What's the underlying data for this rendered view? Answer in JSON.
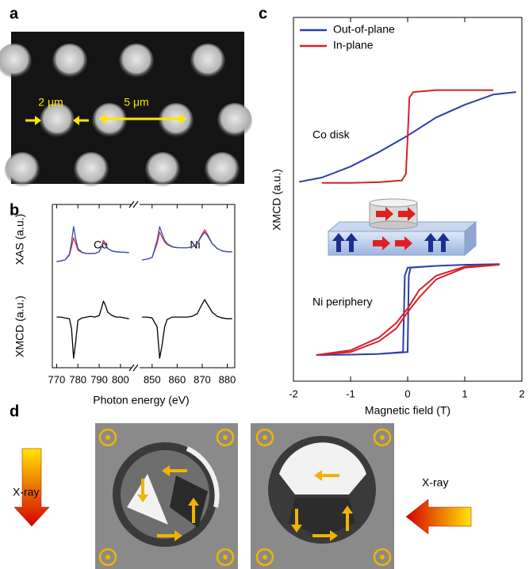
{
  "panel_labels": [
    "a",
    "b",
    "c",
    "d"
  ],
  "panel_a": {
    "annotations": [
      "2 μm",
      "5 μm"
    ]
  },
  "panel_d": {
    "labels": [
      "X-ray",
      "X-ray"
    ]
  },
  "chart_data": [
    {
      "type": "broken-axis-line",
      "xlabel": "Photon energy (eV)",
      "ylabels": [
        "XAS (a.u.)",
        "XMCD (a.u.)"
      ],
      "ylim": [
        0,
        10
      ],
      "segments": [
        {
          "xlim": [
            768,
            806
          ],
          "xticks": [
            770,
            780,
            790,
            800
          ],
          "annotation": "Co",
          "x": [
            770,
            772,
            774,
            776,
            777,
            778,
            779,
            780,
            782,
            784,
            786,
            788,
            790,
            791,
            792,
            793,
            794,
            796,
            798,
            800,
            802,
            804
          ],
          "series": [
            {
              "color": "#e03030",
              "values": [
                6.5,
                6.55,
                6.6,
                6.9,
                7.4,
                7.96,
                7.6,
                7.2,
                7.05,
                7.0,
                7.0,
                7.0,
                7.1,
                7.4,
                7.8,
                7.6,
                7.3,
                7.15,
                7.1,
                7.08,
                7.07,
                7.05
              ]
            },
            {
              "color": "#3050c0",
              "values": [
                6.5,
                6.55,
                6.6,
                6.95,
                7.7,
                8.64,
                7.9,
                7.3,
                7.07,
                7.0,
                7.0,
                7.0,
                7.1,
                7.35,
                7.65,
                7.5,
                7.3,
                7.15,
                7.1,
                7.08,
                7.07,
                7.05
              ]
            },
            {
              "color": "#000000",
              "values": [
                3.1,
                3.1,
                3.05,
                3.0,
                2.4,
                0.58,
                1.6,
                2.9,
                3.05,
                3.1,
                3.15,
                3.1,
                3.2,
                3.6,
                4.08,
                3.8,
                3.4,
                3.2,
                3.1,
                3.1,
                3.05,
                3.0
              ]
            }
          ]
        },
        {
          "xlim": [
            845,
            883
          ],
          "xticks": [
            850,
            860,
            870,
            880
          ],
          "annotation": "Ni",
          "x": [
            846,
            848,
            850,
            852,
            853,
            854,
            855,
            856,
            858,
            860,
            862,
            864,
            866,
            868,
            870,
            871,
            872,
            874,
            876,
            878,
            880,
            882
          ],
          "series": [
            {
              "color": "#e03030",
              "values": [
                6.6,
                6.65,
                6.75,
                7.6,
                8.3,
                8.0,
                7.7,
                7.55,
                7.4,
                7.35,
                7.35,
                7.35,
                7.4,
                7.6,
                8.2,
                8.45,
                8.2,
                7.6,
                7.3,
                7.15,
                7.1,
                7.09
              ]
            },
            {
              "color": "#3050c0",
              "values": [
                6.6,
                6.65,
                6.75,
                7.8,
                8.64,
                8.2,
                7.8,
                7.6,
                7.42,
                7.36,
                7.35,
                7.35,
                7.4,
                7.6,
                8.1,
                8.3,
                8.1,
                7.6,
                7.3,
                7.15,
                7.1,
                7.09
              ]
            },
            {
              "color": "#000000",
              "values": [
                3.1,
                3.1,
                3.05,
                2.5,
                0.58,
                1.4,
                2.5,
                2.95,
                3.1,
                3.1,
                3.1,
                3.1,
                3.15,
                3.3,
                3.9,
                4.17,
                3.9,
                3.4,
                3.15,
                3.05,
                3.0,
                3.0
              ]
            }
          ]
        }
      ]
    },
    {
      "type": "line",
      "xlabel": "Magnetic field (T)",
      "ylabel": "XMCD (a.u.)",
      "xlim": [
        -2,
        2
      ],
      "xticks": [
        -2,
        -1,
        0,
        1,
        2
      ],
      "ylim": [
        0,
        10
      ],
      "annotations": [
        "Co disk",
        "Ni periphery"
      ],
      "series": [
        {
          "name": "Out-of-plane",
          "color": "#2a3fa8",
          "x": [
            -1.9,
            -1.5,
            -1,
            -0.5,
            0,
            0.5,
            1,
            1.5,
            1.9
          ],
          "values": [
            5.48,
            5.6,
            5.9,
            6.3,
            6.75,
            7.25,
            7.6,
            7.88,
            7.95
          ]
        },
        {
          "name": "In-plane",
          "color": "#d8202a",
          "x": [
            -1.5,
            -1,
            -0.5,
            -0.1,
            -0.03,
            0,
            0.03,
            0.1,
            0.5,
            1,
            1.5
          ],
          "values": [
            5.45,
            5.45,
            5.47,
            5.52,
            5.7,
            6.7,
            7.8,
            7.95,
            8.0,
            8.0,
            8.0
          ]
        },
        {
          "color": "#2a3fa8",
          "x": [
            -1.6,
            -1,
            -0.5,
            0,
            0.02,
            0.05,
            0.5,
            1,
            1.6,
            1,
            0.5,
            0,
            -0.05,
            -0.08,
            -0.5,
            -1,
            -1.6
          ],
          "values": [
            0.72,
            0.73,
            0.75,
            0.8,
            2.9,
            3.12,
            3.17,
            3.2,
            3.22,
            3.2,
            3.17,
            3.12,
            2.9,
            0.8,
            0.75,
            0.73,
            0.72
          ]
        },
        {
          "color": "#d8202a",
          "x": [
            -1.6,
            -1,
            -0.5,
            -0.2,
            0,
            0.2,
            0.5,
            1,
            1.6,
            1,
            0.5,
            0.2,
            0,
            -0.2,
            -0.5,
            -1,
            -1.6
          ],
          "values": [
            0.72,
            0.85,
            1.2,
            1.6,
            2.0,
            2.5,
            2.9,
            3.15,
            3.2,
            3.12,
            2.8,
            2.3,
            1.9,
            1.45,
            1.1,
            0.8,
            0.72
          ]
        }
      ]
    }
  ]
}
